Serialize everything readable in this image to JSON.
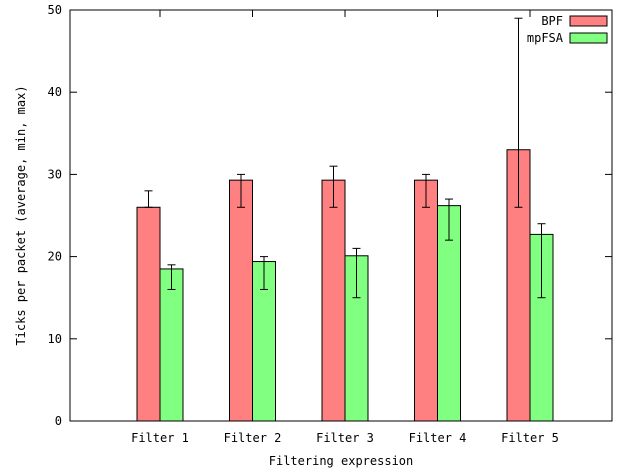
{
  "chart_data": {
    "type": "bar",
    "title": "",
    "xlabel": "Filtering expression",
    "ylabel": "Ticks per packet (average, min, max)",
    "ylim": [
      0,
      50
    ],
    "yticks": [
      0,
      10,
      20,
      30,
      40,
      50
    ],
    "categories": [
      "Filter 1",
      "Filter 2",
      "Filter 3",
      "Filter 4",
      "Filter 5"
    ],
    "legend_position": "top-right",
    "grid": false,
    "series": [
      {
        "name": "BPF",
        "color": "#ff8080",
        "values": [
          26,
          29.3,
          29.3,
          29.3,
          33
        ],
        "min": [
          26,
          26,
          26,
          26,
          26
        ],
        "max": [
          28,
          30,
          31,
          30,
          49
        ]
      },
      {
        "name": "mpFSA",
        "color": "#80ff80",
        "values": [
          18.5,
          19.4,
          20.1,
          26.2,
          22.7
        ],
        "min": [
          16,
          16,
          15,
          22,
          15
        ],
        "max": [
          19,
          20,
          21,
          27,
          24
        ]
      }
    ]
  }
}
